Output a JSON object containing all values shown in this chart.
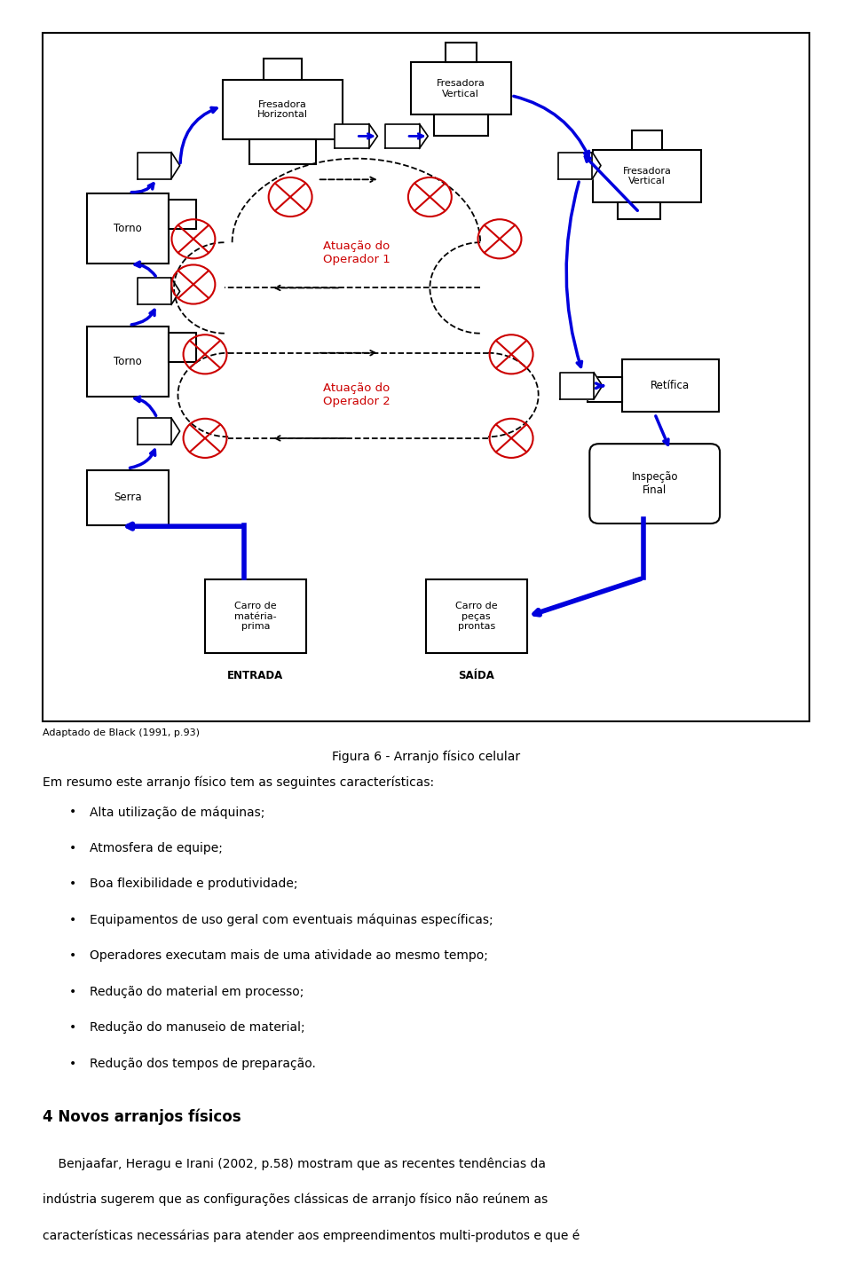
{
  "figure_caption": "Figura 6 - Arranjo físico celular",
  "source_note": "Adaptado de Black (1991, p.93)",
  "blue_color": "#0000dd",
  "red_color": "#cc0000",
  "text_body": "Em resumo este arranjo físico tem as seguintes características:",
  "bullets": [
    "Alta utilização de máquinas;",
    "Atmosfera de equipe;",
    "Boa flexibilidade e produtividade;",
    "Equipamentos de uso geral com eventuais máquinas específicas;",
    "Operadores executam mais de uma atividade ao mesmo tempo;",
    "Redução do material em processo;",
    "Redução do manuseio de material;",
    "Redução dos tempos de preparação."
  ],
  "section_title": "4 Novos arranjos físicos",
  "section_body": "    Benjaafar, Heragu e Irani (2002, p.58) mostram que as recentes tendências da indústria sugerem que as configurações clássicas de arranjo físico não reúnem as características necessárias para atender aos empreendimentos multi-produtos e que é"
}
